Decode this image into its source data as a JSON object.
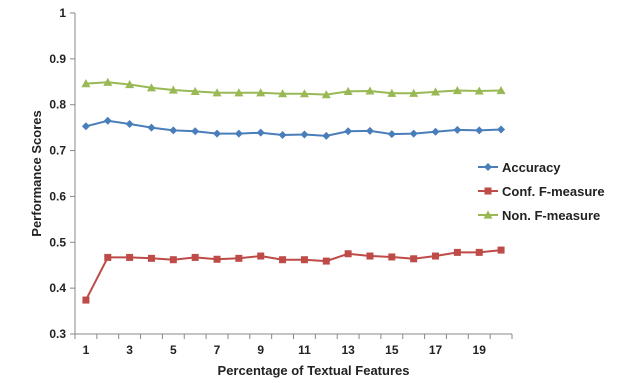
{
  "chart_data": {
    "type": "line",
    "title": "",
    "xlabel": "Percentage of Textual Features",
    "ylabel": "Performance Scores",
    "x": [
      1,
      2,
      3,
      4,
      5,
      6,
      7,
      8,
      9,
      10,
      11,
      12,
      13,
      14,
      15,
      16,
      17,
      18,
      19,
      20
    ],
    "x_tick_labels": [
      "1",
      "3",
      "5",
      "7",
      "9",
      "11",
      "13",
      "15",
      "17",
      "19"
    ],
    "y_tick_labels": [
      "0.3",
      "0.4",
      "0.5",
      "0.6",
      "0.7",
      "0.8",
      "0.9",
      "1"
    ],
    "xlim": [
      0.5,
      20.5
    ],
    "ylim": [
      0.3,
      1.0
    ],
    "grid": false,
    "legend_position": "right",
    "series": [
      {
        "name": "Accuracy",
        "color": "#4a7ebb",
        "marker": "diamond",
        "values": [
          0.753,
          0.765,
          0.758,
          0.75,
          0.744,
          0.742,
          0.737,
          0.737,
          0.739,
          0.734,
          0.735,
          0.732,
          0.742,
          0.743,
          0.736,
          0.737,
          0.741,
          0.745,
          0.744,
          0.746
        ]
      },
      {
        "name": "Conf. F-measure",
        "color": "#be4b48",
        "marker": "square",
        "values": [
          0.374,
          0.467,
          0.467,
          0.465,
          0.462,
          0.467,
          0.463,
          0.465,
          0.47,
          0.462,
          0.462,
          0.459,
          0.475,
          0.47,
          0.468,
          0.464,
          0.47,
          0.478,
          0.478,
          0.483
        ]
      },
      {
        "name": "Non. F-measure",
        "color": "#98b954",
        "marker": "triangle",
        "values": [
          0.846,
          0.849,
          0.844,
          0.837,
          0.832,
          0.829,
          0.826,
          0.826,
          0.826,
          0.824,
          0.824,
          0.822,
          0.829,
          0.83,
          0.825,
          0.825,
          0.828,
          0.831,
          0.83,
          0.831
        ]
      }
    ]
  },
  "colors": {
    "axis": "#888888",
    "text": "#222222",
    "background": "#ffffff"
  }
}
